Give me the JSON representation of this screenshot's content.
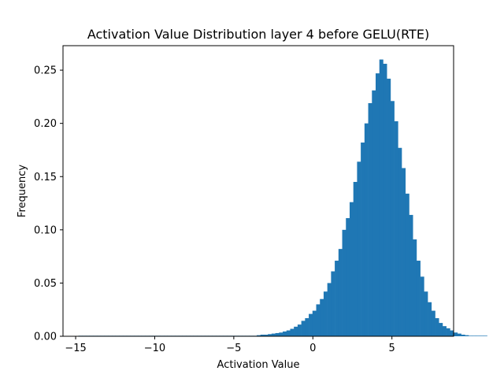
{
  "chart_data": {
    "type": "bar",
    "title": "Activation Value Distribution layer 4 before GELU(RTE)",
    "xlabel": "Activation Value",
    "ylabel": "Frequency",
    "xlim": [
      -15.8,
      8.9
    ],
    "ylim": [
      0,
      0.273
    ],
    "x_ticks": [
      -15,
      -10,
      -5,
      0,
      5
    ],
    "y_ticks": [
      0.0,
      0.05,
      0.1,
      0.15,
      0.2,
      0.25
    ],
    "x_tick_labels": [
      "−15",
      "−10",
      "−5",
      "0",
      "5"
    ],
    "y_tick_labels": [
      "0.00",
      "0.05",
      "0.10",
      "0.15",
      "0.20",
      "0.25"
    ],
    "grid": false,
    "bar_color": "#1f77b4",
    "bin_width": 0.235,
    "bin_start": -14.83,
    "values": [
      0.0005,
      0.0005,
      0.0005,
      0.0005,
      0.0005,
      0.0005,
      0.0005,
      0.0005,
      0.0005,
      0.0005,
      0.0005,
      0.0005,
      0.0005,
      0.0005,
      0.0005,
      0.0005,
      0.0005,
      0.0005,
      0.0005,
      0.0005,
      0.0005,
      0.0005,
      0.0005,
      0.0005,
      0.0005,
      0.0005,
      0.0005,
      0.0005,
      0.0005,
      0.0005,
      0.0005,
      0.0005,
      0.0005,
      0.0005,
      0.0005,
      0.0005,
      0.0005,
      0.0005,
      0.0005,
      0.0005,
      0.0005,
      0.0005,
      0.0005,
      0.0005,
      0.0005,
      0.0005,
      0.0005,
      0.0005,
      0.001,
      0.0015,
      0.0015,
      0.002,
      0.0025,
      0.003,
      0.0035,
      0.0045,
      0.0055,
      0.007,
      0.009,
      0.011,
      0.0145,
      0.017,
      0.021,
      0.024,
      0.03,
      0.035,
      0.042,
      0.05,
      0.061,
      0.071,
      0.082,
      0.1,
      0.111,
      0.126,
      0.145,
      0.164,
      0.182,
      0.2,
      0.219,
      0.231,
      0.247,
      0.26,
      0.256,
      0.242,
      0.221,
      0.202,
      0.177,
      0.158,
      0.134,
      0.114,
      0.091,
      0.071,
      0.056,
      0.042,
      0.032,
      0.024,
      0.017,
      0.0125,
      0.0095,
      0.0075,
      0.0055,
      0.0035,
      0.0025,
      0.0015,
      0.001,
      0.0005,
      0.0005,
      0.0005,
      0.0005,
      0.0005
    ]
  }
}
